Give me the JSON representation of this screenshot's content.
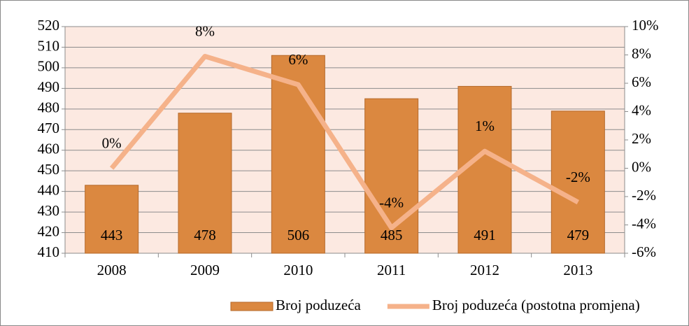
{
  "chart_data": {
    "type": "bar",
    "categories": [
      "2008",
      "2009",
      "2010",
      "2011",
      "2012",
      "2013"
    ],
    "series": [
      {
        "name": "Broj poduzeća",
        "type": "bar",
        "color": "#db8840",
        "values": [
          443,
          478,
          506,
          485,
          491,
          479
        ]
      },
      {
        "name": "Broj poduzeća (postotna promjena)",
        "type": "line",
        "axis": "y2",
        "color": "#f5b28a",
        "values": [
          0,
          7.9,
          5.9,
          -4.2,
          1.2,
          -2.4
        ],
        "value_labels": [
          "0%",
          "8%",
          "6%",
          "-4%",
          "1%",
          "-2%"
        ]
      }
    ],
    "ylim": [
      410,
      520
    ],
    "yticks": [
      410,
      420,
      430,
      440,
      450,
      460,
      470,
      480,
      490,
      500,
      510,
      520
    ],
    "y2lim": [
      -6,
      10
    ],
    "y2ticks": [
      {
        "value": -6,
        "label": "-6%"
      },
      {
        "value": -4,
        "label": "-4%"
      },
      {
        "value": -2,
        "label": "-2%"
      },
      {
        "value": 0,
        "label": "0%"
      },
      {
        "value": 2,
        "label": "2%"
      },
      {
        "value": 4,
        "label": "4%"
      },
      {
        "value": 6,
        "label": "6%"
      },
      {
        "value": 8,
        "label": "8%"
      },
      {
        "value": 10,
        "label": "10%"
      }
    ],
    "grid": true,
    "legend": "bottom"
  }
}
